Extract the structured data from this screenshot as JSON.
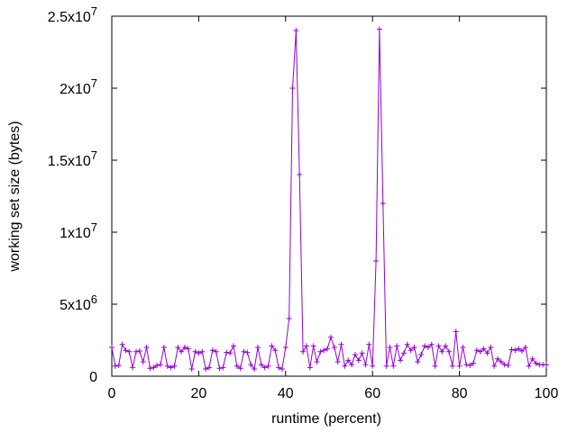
{
  "chart_data": {
    "type": "line",
    "xlabel": "runtime (percent)",
    "ylabel": "working set size (bytes)",
    "xlim": [
      0,
      100
    ],
    "ylim": [
      0,
      25000000
    ],
    "x_ticks": [
      {
        "value": 0,
        "label": "0"
      },
      {
        "value": 20,
        "label": "20"
      },
      {
        "value": 40,
        "label": "40"
      },
      {
        "value": 60,
        "label": "60"
      },
      {
        "value": 80,
        "label": "80"
      },
      {
        "value": 100,
        "label": "100"
      }
    ],
    "y_ticks": [
      {
        "value": 0,
        "mant": "0",
        "exp": ""
      },
      {
        "value": 5000000,
        "mant": "5x10",
        "exp": "6"
      },
      {
        "value": 10000000,
        "mant": "1x10",
        "exp": "7"
      },
      {
        "value": 15000000,
        "mant": "1.5x10",
        "exp": "7"
      },
      {
        "value": 20000000,
        "mant": "2x10",
        "exp": "7"
      },
      {
        "value": 25000000,
        "mant": "2.5x10",
        "exp": "7"
      }
    ],
    "grid": false,
    "line_color": "#9400d3",
    "marker": "plus",
    "points": [
      [
        0.0,
        2000000
      ],
      [
        0.8,
        700000
      ],
      [
        1.6,
        750000
      ],
      [
        2.4,
        2200000
      ],
      [
        3.2,
        1800000
      ],
      [
        4.0,
        1700000
      ],
      [
        4.8,
        600000
      ],
      [
        5.6,
        1700000
      ],
      [
        6.4,
        1750000
      ],
      [
        7.2,
        1000000
      ],
      [
        8.0,
        2000000
      ],
      [
        8.8,
        550000
      ],
      [
        9.6,
        600000
      ],
      [
        10.4,
        750000
      ],
      [
        11.2,
        800000
      ],
      [
        12.0,
        2000000
      ],
      [
        12.8,
        700000
      ],
      [
        13.6,
        600000
      ],
      [
        14.4,
        700000
      ],
      [
        15.2,
        2000000
      ],
      [
        16.0,
        1700000
      ],
      [
        16.8,
        2000000
      ],
      [
        17.6,
        1900000
      ],
      [
        18.4,
        500000
      ],
      [
        19.2,
        1700000
      ],
      [
        20.0,
        1600000
      ],
      [
        20.8,
        1700000
      ],
      [
        21.6,
        500000
      ],
      [
        22.4,
        600000
      ],
      [
        23.2,
        1800000
      ],
      [
        24.0,
        1700000
      ],
      [
        24.8,
        550000
      ],
      [
        25.6,
        600000
      ],
      [
        26.4,
        1650000
      ],
      [
        27.2,
        1600000
      ],
      [
        28.0,
        2100000
      ],
      [
        28.8,
        700000
      ],
      [
        29.6,
        550000
      ],
      [
        30.4,
        1700000
      ],
      [
        31.2,
        1650000
      ],
      [
        32.0,
        800000
      ],
      [
        32.8,
        500000
      ],
      [
        33.6,
        2000000
      ],
      [
        34.4,
        800000
      ],
      [
        35.2,
        600000
      ],
      [
        36.0,
        700000
      ],
      [
        36.8,
        2100000
      ],
      [
        37.6,
        1800000
      ],
      [
        38.4,
        600000
      ],
      [
        39.2,
        500000
      ],
      [
        40.0,
        2000000
      ],
      [
        40.8,
        4000000
      ],
      [
        41.6,
        20000000
      ],
      [
        42.4,
        24000000
      ],
      [
        43.2,
        14000000
      ],
      [
        44.0,
        1700000
      ],
      [
        44.8,
        2100000
      ],
      [
        45.6,
        600000
      ],
      [
        46.4,
        2100000
      ],
      [
        47.2,
        1000000
      ],
      [
        48.0,
        1700000
      ],
      [
        48.8,
        1800000
      ],
      [
        49.6,
        1900000
      ],
      [
        50.4,
        2700000
      ],
      [
        51.2,
        2000000
      ],
      [
        52.0,
        1000000
      ],
      [
        52.8,
        2200000
      ],
      [
        53.6,
        700000
      ],
      [
        54.4,
        1100000
      ],
      [
        55.2,
        800000
      ],
      [
        56.0,
        1500000
      ],
      [
        56.8,
        1100000
      ],
      [
        57.6,
        1600000
      ],
      [
        58.4,
        800000
      ],
      [
        59.2,
        2200000
      ],
      [
        60.0,
        700000
      ],
      [
        60.8,
        8000000
      ],
      [
        61.6,
        24100000
      ],
      [
        62.4,
        12000000
      ],
      [
        63.2,
        700000
      ],
      [
        64.0,
        2000000
      ],
      [
        64.8,
        700000
      ],
      [
        65.6,
        2100000
      ],
      [
        66.4,
        1100000
      ],
      [
        67.2,
        1600000
      ],
      [
        68.0,
        2200000
      ],
      [
        68.8,
        1800000
      ],
      [
        69.6,
        2000000
      ],
      [
        70.4,
        1000000
      ],
      [
        71.2,
        1500000
      ],
      [
        72.0,
        2100000
      ],
      [
        72.8,
        2000000
      ],
      [
        73.6,
        2200000
      ],
      [
        74.4,
        700000
      ],
      [
        75.2,
        2100000
      ],
      [
        76.0,
        1700000
      ],
      [
        76.8,
        2100000
      ],
      [
        77.6,
        1700000
      ],
      [
        78.4,
        700000
      ],
      [
        79.2,
        3100000
      ],
      [
        80.0,
        700000
      ],
      [
        80.8,
        2000000
      ],
      [
        81.6,
        800000
      ],
      [
        82.4,
        750000
      ],
      [
        83.2,
        900000
      ],
      [
        84.0,
        1800000
      ],
      [
        84.8,
        1700000
      ],
      [
        85.6,
        1900000
      ],
      [
        86.4,
        1600000
      ],
      [
        87.2,
        2000000
      ],
      [
        88.0,
        700000
      ],
      [
        88.8,
        1200000
      ],
      [
        89.6,
        1000000
      ],
      [
        90.4,
        800000
      ],
      [
        91.2,
        750000
      ],
      [
        92.0,
        1850000
      ],
      [
        92.8,
        1800000
      ],
      [
        93.6,
        1900000
      ],
      [
        94.4,
        1750000
      ],
      [
        95.2,
        2000000
      ],
      [
        96.0,
        700000
      ],
      [
        96.8,
        1200000
      ],
      [
        97.6,
        900000
      ],
      [
        98.4,
        800000
      ],
      [
        99.2,
        800000
      ],
      [
        100.0,
        800000
      ]
    ]
  }
}
